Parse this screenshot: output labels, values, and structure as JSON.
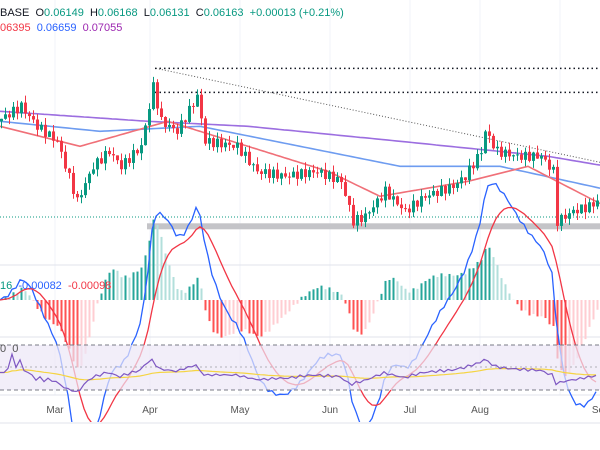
{
  "header": {
    "symbol": "BASE",
    "o_label": "O",
    "o": "0.06149",
    "h_label": "H",
    "h": "0.06168",
    "l_label": "L",
    "l": "0.06131",
    "c_label": "C",
    "c": "0.06163",
    "change": "+0.00013 (+0.21%)",
    "ma1": "06395",
    "ma2": "0.06659",
    "ma3": "0.07055"
  },
  "macd": {
    "v0": "16",
    "v1": "-0.00082",
    "v2": "-0.00098"
  },
  "rsi": {
    "v0": "0",
    "v1": "0"
  },
  "chart_data": {
    "type": "candlestick",
    "x_ticks": [
      "Mar",
      "Apr",
      "May",
      "Jun",
      "Jul",
      "Aug",
      "Se"
    ],
    "close_keypoints": [
      [
        0,
        0.07809
      ],
      [
        4,
        0.07981
      ],
      [
        6,
        0.08067
      ],
      [
        10,
        0.07723
      ],
      [
        15,
        0.07465
      ],
      [
        20,
        0.06433
      ],
      [
        24,
        0.07035
      ],
      [
        28,
        0.07293
      ],
      [
        31,
        0.07035
      ],
      [
        36,
        0.07379
      ],
      [
        39,
        0.08411
      ],
      [
        41,
        0.07809
      ],
      [
        45,
        0.07637
      ],
      [
        50,
        0.08239
      ],
      [
        52,
        0.07465
      ],
      [
        60,
        0.07379
      ],
      [
        65,
        0.06949
      ],
      [
        72,
        0.06863
      ],
      [
        80,
        0.06949
      ],
      [
        86,
        0.06777
      ],
      [
        89,
        0.06089
      ],
      [
        92,
        0.06175
      ],
      [
        97,
        0.06605
      ],
      [
        102,
        0.06261
      ],
      [
        107,
        0.06519
      ],
      [
        114,
        0.06691
      ],
      [
        117,
        0.06863
      ],
      [
        121,
        0.07293
      ],
      [
        122,
        0.07637
      ],
      [
        125,
        0.07293
      ],
      [
        130,
        0.07207
      ],
      [
        136,
        0.07207
      ],
      [
        139,
        0.06949
      ],
      [
        140,
        0.06089
      ],
      [
        144,
        0.06261
      ],
      [
        148,
        0.06347
      ],
      [
        150,
        0.06433
      ]
    ],
    "ma_red": [
      [
        0,
        0.07723
      ],
      [
        20,
        0.07379
      ],
      [
        42,
        0.07809
      ],
      [
        62,
        0.07379
      ],
      [
        82,
        0.06949
      ],
      [
        95,
        0.06519
      ],
      [
        117,
        0.06777
      ],
      [
        132,
        0.07035
      ],
      [
        150,
        0.06395
      ]
    ],
    "ma_blue": [
      [
        0,
        0.07809
      ],
      [
        25,
        0.07637
      ],
      [
        50,
        0.07723
      ],
      [
        75,
        0.07379
      ],
      [
        100,
        0.07035
      ],
      [
        125,
        0.07035
      ],
      [
        150,
        0.06659
      ]
    ],
    "ma_purple": [
      [
        0,
        0.07981
      ],
      [
        37,
        0.07809
      ],
      [
        62,
        0.07723
      ],
      [
        100,
        0.07465
      ],
      [
        137,
        0.07207
      ],
      [
        150,
        0.07055
      ]
    ],
    "last_price": 0.06163,
    "support": 0.06003,
    "resistance_levels": [
      0.0872,
      0.08307
    ],
    "trendline": [
      [
        39,
        0.0872
      ],
      [
        150,
        0.07104
      ]
    ]
  }
}
